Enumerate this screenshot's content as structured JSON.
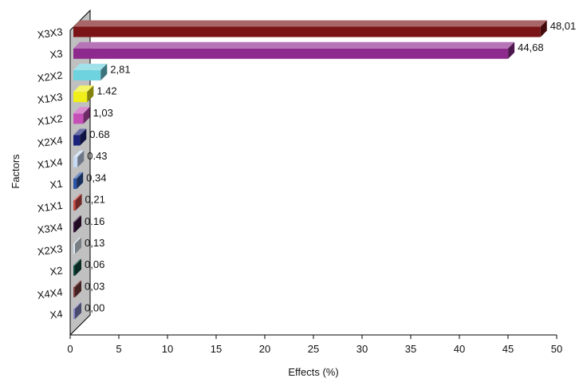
{
  "chart_data": {
    "type": "bar",
    "orientation": "horizontal",
    "style": "3d",
    "xlabel": "Effects (%)",
    "ylabel": "Factors",
    "xlim": [
      0,
      50
    ],
    "xticks": [
      "0",
      "5",
      "10",
      "15",
      "20",
      "25",
      "30",
      "35",
      "40",
      "45",
      "50"
    ],
    "grid": false,
    "legend": "none",
    "categories": [
      "X3X3",
      "X3",
      "X2X2",
      "X1X3",
      "X1X2",
      "X2X4",
      "X1X4",
      "X1",
      "X1X1",
      "X3X4",
      "X2X3",
      "X2",
      "X4X4",
      "X4"
    ],
    "values": [
      48.01,
      44.68,
      2.81,
      1.42,
      1.03,
      0.68,
      0.43,
      0.34,
      0.21,
      0.16,
      0.13,
      0.06,
      0.03,
      0.0
    ],
    "data_labels": [
      "48,01",
      "44,68",
      "2,81",
      "1.42",
      "1,03",
      "0.68",
      "0.43",
      "0,34",
      "0,21",
      "0.16",
      "0,13",
      "0,06",
      "0,03",
      "0,00"
    ],
    "colors": [
      "#7a1416",
      "#8e2a8e",
      "#6fd3df",
      "#f0ef1a",
      "#c64fb8",
      "#1b237a",
      "#c7d8f2",
      "#2b56a8",
      "#c84a46",
      "#3a1440",
      "#d8e6f0",
      "#114a3e",
      "#7d4040",
      "#8787c6"
    ]
  }
}
